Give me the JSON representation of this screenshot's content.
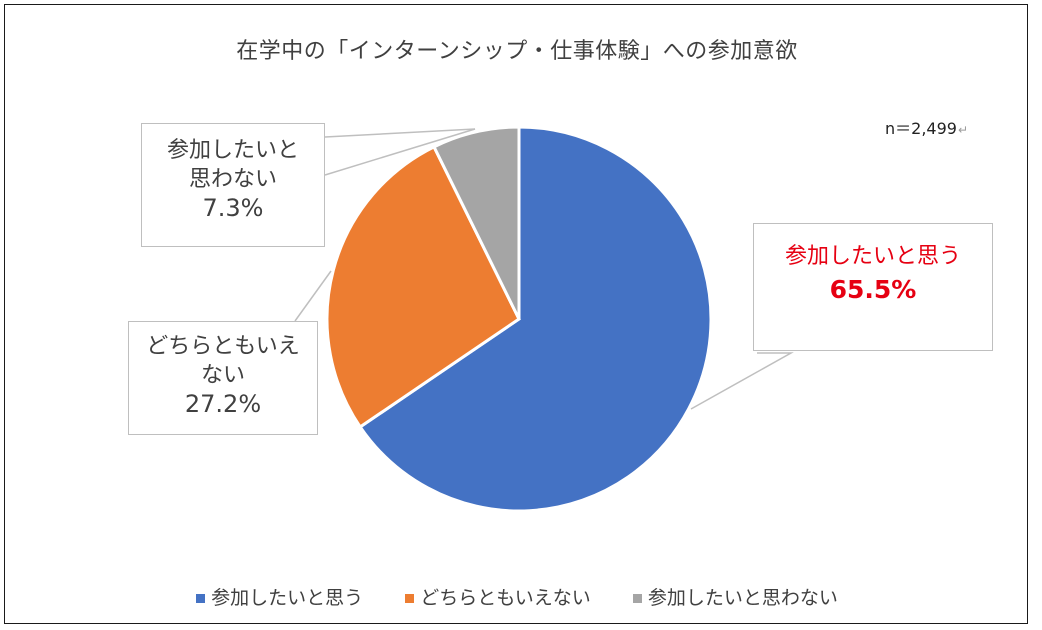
{
  "chart_data": {
    "type": "pie",
    "title": "在学中の「インターンシップ・仕事体験」への参加意欲",
    "note": "n＝2,499",
    "categories": [
      "参加したいと思う",
      "どちらともいえない",
      "参加したいと思わない"
    ],
    "values": [
      65.5,
      27.2,
      7.3
    ],
    "value_labels": [
      "65.5%",
      "27.2%",
      "7.3%"
    ],
    "colors": [
      "#4472c4",
      "#ed7d31",
      "#a5a5a5"
    ],
    "legend": "bottom",
    "callouts": [
      {
        "lines": [
          "参加したいと思う"
        ],
        "value": "65.5%",
        "color": "#e60012"
      },
      {
        "lines": [
          "どちらともいえ",
          "ない"
        ],
        "value": "27.2%",
        "color": "#404040"
      },
      {
        "lines": [
          "参加したいと",
          "思わない"
        ],
        "value": "7.3%",
        "color": "#404040"
      }
    ]
  }
}
